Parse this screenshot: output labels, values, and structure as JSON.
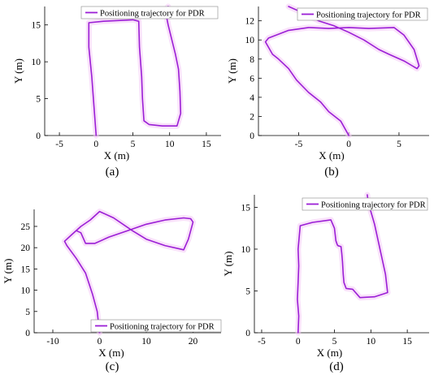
{
  "colors": {
    "trajectory": "#9b1fd6",
    "glow": "#f4c8f5",
    "axis": "#000000"
  },
  "chart_data": [
    {
      "type": "line",
      "panel_label": "(a)",
      "xlabel": "X (m)",
      "ylabel": "Y (m)",
      "xlim": [
        -7,
        17
      ],
      "ylim": [
        0,
        17.5
      ],
      "xticks": [
        -5,
        0,
        5,
        10,
        15
      ],
      "yticks": [
        0,
        5,
        10,
        15
      ],
      "legend_position": "top-right",
      "series": [
        {
          "name": "Positioning trajectory for PDR",
          "x": [
            0.0,
            -0.3,
            -0.6,
            -1.0,
            -1.0,
            1.0,
            3.0,
            5.0,
            5.8,
            5.9,
            6.2,
            6.3,
            6.5,
            7.2,
            9.0,
            11.0,
            11.5,
            11.4,
            11.2,
            10.8,
            10.3,
            9.8,
            9.5,
            9.4,
            9.8
          ],
          "y": [
            0.0,
            4.0,
            8.0,
            12.0,
            15.3,
            15.5,
            15.6,
            15.7,
            15.5,
            12.0,
            8.0,
            5.0,
            2.0,
            1.5,
            1.3,
            1.3,
            3.0,
            6.0,
            9.0,
            11.0,
            13.0,
            15.0,
            16.5,
            17.0,
            17.5
          ]
        }
      ]
    },
    {
      "type": "line",
      "panel_label": "(b)",
      "xlabel": "X (m)",
      "ylabel": "Y (m)",
      "xlim": [
        -9,
        8
      ],
      "ylim": [
        0,
        13.5
      ],
      "xticks": [
        -5,
        0,
        5
      ],
      "yticks": [
        0,
        2,
        4,
        6,
        8,
        10,
        12
      ],
      "legend_position": "top-right",
      "series": [
        {
          "name": "Positioning trajectory for PDR",
          "x": [
            0.0,
            -0.8,
            -2.0,
            -2.8,
            -4.0,
            -5.2,
            -6.0,
            -7.0,
            -7.6,
            -8.3,
            -8.0,
            -6.0,
            -4.0,
            -2.0,
            0.0,
            2.0,
            4.5,
            5.5,
            6.5,
            7.0,
            6.8,
            5.5,
            4.0,
            3.0,
            1.5,
            0.0,
            -1.5,
            -3.0,
            -4.5,
            -6.0
          ],
          "y": [
            0.0,
            1.5,
            2.5,
            3.5,
            4.5,
            5.8,
            7.0,
            8.0,
            8.5,
            9.8,
            10.2,
            11.0,
            11.3,
            11.2,
            11.3,
            11.2,
            11.3,
            10.5,
            9.0,
            7.3,
            7.0,
            7.8,
            8.5,
            9.0,
            10.0,
            10.8,
            11.5,
            12.0,
            12.8,
            13.5
          ]
        }
      ]
    },
    {
      "type": "line",
      "panel_label": "(c)",
      "xlabel": "X (m)",
      "ylabel": "Y (m)",
      "xlim": [
        -14,
        26
      ],
      "ylim": [
        0,
        29
      ],
      "xticks": [
        -10,
        0,
        10,
        20
      ],
      "yticks": [
        0,
        5,
        10,
        15,
        20,
        25
      ],
      "legend_position": "bottom-right",
      "series": [
        {
          "name": "Positioning trajectory for PDR",
          "x": [
            0.0,
            -0.5,
            -1.5,
            -3.0,
            -5.0,
            -7.0,
            -7.5,
            -6.0,
            -4.0,
            -2.0,
            0.0,
            3.0,
            7.0,
            10.0,
            14.0,
            18.0,
            19.0,
            20.0,
            19.5,
            18.0,
            14.0,
            10.0,
            6.0,
            2.0,
            -1.0,
            -3.0,
            -4.0,
            -5.0
          ],
          "y": [
            0.0,
            5.0,
            9.0,
            14.0,
            17.5,
            20.5,
            21.5,
            23.0,
            25.0,
            26.5,
            28.5,
            27.0,
            24.0,
            22.0,
            20.5,
            19.5,
            22.0,
            26.0,
            26.8,
            27.0,
            26.5,
            25.5,
            24.0,
            22.5,
            21.0,
            21.0,
            23.5,
            24.0
          ]
        }
      ]
    },
    {
      "type": "line",
      "panel_label": "(d)",
      "xlabel": "X (m)",
      "ylabel": "Y (m)",
      "xlim": [
        -6,
        18
      ],
      "ylim": [
        0,
        16.5
      ],
      "xticks": [
        -5,
        0,
        5,
        10,
        15
      ],
      "yticks": [
        0,
        5,
        10,
        15
      ],
      "legend_position": "top-right",
      "series": [
        {
          "name": "Positioning trajectory for PDR",
          "x": [
            0.0,
            0.1,
            -0.1,
            0.0,
            0.1,
            0.0,
            0.3,
            2.0,
            4.5,
            5.0,
            5.2,
            5.4,
            5.5,
            5.9,
            6.0,
            6.1,
            6.2,
            6.3,
            6.6,
            7.5,
            8.5,
            10.5,
            12.3,
            12.0,
            11.5,
            11.0,
            10.5,
            10.0,
            9.6,
            9.5
          ],
          "y": [
            0.0,
            2.0,
            4.0,
            6.0,
            8.0,
            10.0,
            12.8,
            13.2,
            13.5,
            12.5,
            11.0,
            10.5,
            10.4,
            10.3,
            9.5,
            8.5,
            7.0,
            6.0,
            5.3,
            5.2,
            4.2,
            4.3,
            4.8,
            7.0,
            9.0,
            11.0,
            13.0,
            14.5,
            15.8,
            16.5
          ]
        }
      ]
    }
  ]
}
